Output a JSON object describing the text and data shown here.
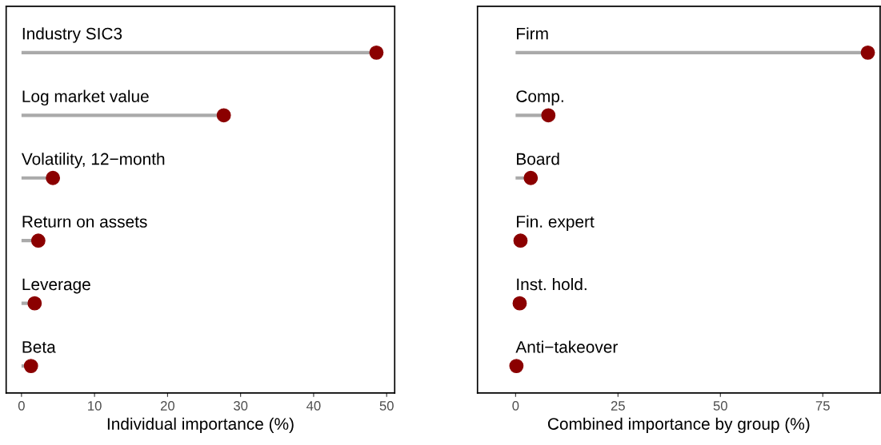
{
  "chart_data": [
    {
      "type": "lollipop",
      "orientation": "horizontal",
      "xlabel": "Individual importance (%)",
      "categories": [
        "Industry SIC3",
        "Log market value",
        "Volatility, 12−month",
        "Return on assets",
        "Leverage",
        "Beta"
      ],
      "values": [
        48.6,
        27.7,
        4.3,
        2.3,
        1.8,
        1.3
      ],
      "color": "#8b0000",
      "xlim": [
        -2.1,
        51.1
      ],
      "xticks": [
        0,
        10,
        20,
        30,
        40,
        50
      ],
      "grid": false,
      "tick_labels": "x"
    },
    {
      "type": "lollipop",
      "orientation": "horizontal",
      "xlabel": "Combined importance by group (%)",
      "categories": [
        "Firm",
        "Comp.",
        "Board",
        "Fin. expert",
        "Inst. hold.",
        "Anti−takeover"
      ],
      "values": [
        86.0,
        8.0,
        3.7,
        1.2,
        1.0,
        0.2
      ],
      "color": "#8b0000",
      "xlim": [
        -9.3,
        89
      ],
      "xticks": [
        0,
        25,
        50,
        75
      ],
      "grid": false,
      "tick_labels": "x"
    }
  ]
}
